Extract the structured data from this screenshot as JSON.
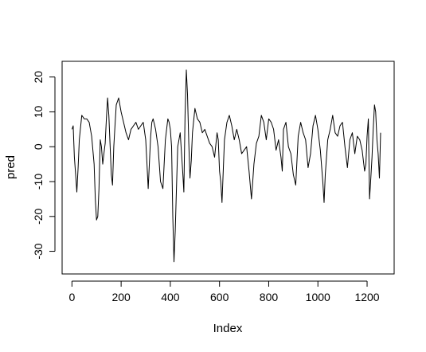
{
  "chart_data": {
    "type": "line",
    "title": "",
    "xlabel": "Index",
    "ylabel": "pred",
    "xlim": [
      -40,
      1310
    ],
    "ylim": [
      -36.5,
      24.5
    ],
    "xticks": [
      0,
      200,
      400,
      600,
      800,
      1000,
      1200
    ],
    "yticks": [
      -30,
      -20,
      -10,
      0,
      10,
      20
    ],
    "xtick_labels": [
      "0",
      "200",
      "400",
      "600",
      "800",
      "1000",
      "1200"
    ],
    "ytick_labels": [
      "-30",
      "-20",
      "-10",
      "0",
      "10",
      "20"
    ],
    "grid": false,
    "legend": "none",
    "line_color": "#000000",
    "series": [
      {
        "x": [
          0,
          5,
          10,
          15,
          20,
          25,
          30,
          40,
          50,
          60,
          70,
          80,
          90,
          95,
          100,
          105,
          110,
          115,
          120,
          125,
          130,
          135,
          140,
          145,
          150,
          160,
          165,
          170,
          175,
          180,
          190,
          200,
          210,
          220,
          230,
          240,
          250,
          260,
          270,
          280,
          290,
          300,
          305,
          310,
          320,
          325,
          330,
          340,
          350,
          360,
          370,
          380,
          390,
          395,
          400,
          405,
          410,
          415,
          420,
          425,
          430,
          440,
          450,
          455,
          460,
          465,
          470,
          475,
          480,
          485,
          490,
          500,
          510,
          520,
          530,
          540,
          550,
          560,
          570,
          580,
          590,
          595,
          600,
          605,
          610,
          620,
          630,
          640,
          650,
          660,
          670,
          680,
          690,
          700,
          710,
          720,
          725,
          730,
          735,
          740,
          750,
          760,
          770,
          780,
          790,
          800,
          810,
          820,
          830,
          840,
          850,
          855,
          860,
          870,
          880,
          890,
          900,
          910,
          920,
          930,
          940,
          950,
          960,
          970,
          980,
          990,
          1000,
          1010,
          1020,
          1025,
          1030,
          1040,
          1050,
          1060,
          1070,
          1080,
          1090,
          1100,
          1110,
          1120,
          1130,
          1140,
          1150,
          1160,
          1170,
          1180,
          1190,
          1195,
          1200,
          1205,
          1210,
          1215,
          1220,
          1225,
          1230,
          1235,
          1240,
          1245,
          1250,
          1255
        ],
        "y": [
          5,
          6,
          -3,
          -8,
          -13,
          -6,
          2,
          9,
          8,
          8,
          7,
          3,
          -5,
          -15,
          -21,
          -20,
          -12,
          2,
          0,
          -5,
          -2,
          1,
          8,
          14,
          9,
          -8,
          -11,
          0,
          6,
          12,
          14,
          10,
          7,
          4,
          2,
          5,
          6,
          7,
          5,
          6,
          7,
          2,
          -5,
          -12,
          3,
          7,
          8,
          5,
          0,
          -10,
          -12,
          2,
          8,
          7,
          5,
          0,
          -20,
          -33,
          -24,
          -12,
          0,
          4,
          -7,
          -13,
          9,
          22,
          15,
          1,
          -9,
          -4,
          4,
          11,
          8,
          7,
          4,
          5,
          3,
          1,
          0,
          -3,
          4,
          2,
          -7,
          -10,
          -16,
          2,
          7,
          9,
          6,
          2,
          5,
          2,
          -2,
          -1,
          0,
          -7,
          -11,
          -15,
          -10,
          -5,
          1,
          3,
          9,
          7,
          2,
          8,
          7,
          5,
          -1,
          2,
          -3,
          -7,
          5,
          7,
          0,
          -2,
          -8,
          -11,
          3,
          7,
          4,
          2,
          -6,
          -2,
          6,
          9,
          5,
          -1,
          -10,
          -16,
          -8,
          2,
          5,
          9,
          4,
          3,
          6,
          7,
          0,
          -6,
          2,
          4,
          -2,
          3,
          2,
          -1,
          -7,
          -5,
          3,
          8,
          -15,
          -9,
          -3,
          5,
          12,
          10,
          2,
          -2,
          -9,
          4
        ]
      }
    ]
  }
}
